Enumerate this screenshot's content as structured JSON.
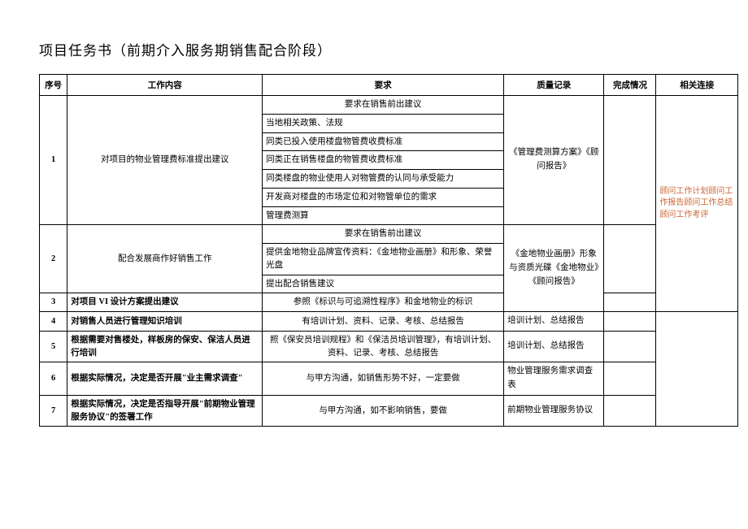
{
  "title": "项目任务书（前期介入服务期销售配合阶段）",
  "headers": {
    "seq": "序号",
    "work": "工作内容",
    "req": "要求",
    "qual": "质量记录",
    "done": "完成情况",
    "link": "相关连接"
  },
  "row1": {
    "seq": "1",
    "work": "对项目的物业管理费标准提出建议",
    "req_head": "要求在销售前出建议",
    "r1": "当地相关政策、法规",
    "r2": "同类已投入使用楼盘物管费收费标准",
    "r3": "同类正在销售楼盘的物管费收费标准",
    "r4": "同类楼盘的物业使用人对物管费的认同与承受能力",
    "r5": "开发商对楼盘的市场定位和对物管单位的需求",
    "r6": "管理费测算",
    "qual": "《管理费测算方案》《顾问报告》"
  },
  "row2": {
    "seq": "2",
    "work": "配合发展商作好销售工作",
    "req_head": "要求在销售前出建议",
    "r1": "提供金地物业品牌宣传资料：《金地物业画册》和形象、荣誉光盘",
    "r2": "提出配合销售建议",
    "qual": "《金地物业画册》形象与资质光碟《金地物业》《顾问报告》"
  },
  "row3": {
    "seq": "3",
    "work": "对项目 VI 设计方案提出建议",
    "req": "参照《标识与可追溯性程序》和金地物业的标识"
  },
  "row4": {
    "seq": "4",
    "work": "对销售人员进行管理知识培训",
    "req": "有培训计划、资料、记录、考核、总结报告",
    "qual": "培训计划、总结报告"
  },
  "row5": {
    "seq": "5",
    "work": "根据需要对售楼处，样板房的保安、保洁人员进行培训",
    "req": "照《保安员培训规程》和《保洁员培训管理》，有培训计划、资料、记录、考核、总结报告",
    "qual": "培训计划、总结报告"
  },
  "row6": {
    "seq": "6",
    "work": "根据实际情况，决定是否开展\"业主需求调查\"",
    "req": "与甲方沟通，如销售形势不好，一定要做",
    "qual": "物业管理服务需求调查表"
  },
  "row7": {
    "seq": "7",
    "work": "根据实际情况，决定是否指导开展\"前期物业管理服务协议\"的签署工作",
    "req": "与甲方沟通，如不影响销售，要做",
    "qual": "前期物业管理服务协议"
  },
  "link_text": "顾问工作计划顾问工作报告顾问工作总结顾问工作考评"
}
